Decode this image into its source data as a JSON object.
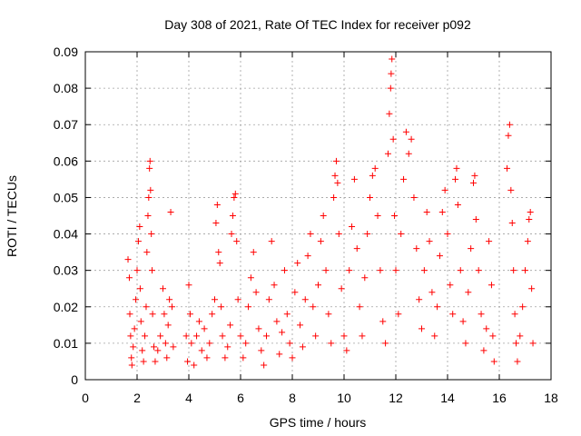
{
  "chart_data": {
    "type": "scatter",
    "title": "Day 308 of 2021, Rate Of TEC Index for receiver p092",
    "xlabel": "GPS time / hours",
    "ylabel": "ROTI / TECUs",
    "xlim": [
      0,
      18
    ],
    "ylim": [
      0,
      0.09
    ],
    "xticks": [
      0,
      2,
      4,
      6,
      8,
      10,
      12,
      14,
      16,
      18
    ],
    "yticks": [
      0,
      0.01,
      0.02,
      0.03,
      0.04,
      0.05,
      0.06,
      0.07,
      0.08,
      0.09
    ],
    "xtick_labels": [
      "0",
      "2",
      "4",
      "6",
      "8",
      "10",
      "12",
      "14",
      "16",
      "18"
    ],
    "ytick_labels": [
      "0",
      "0.01",
      "0.02",
      "0.03",
      "0.04",
      "0.05",
      "0.06",
      "0.07",
      "0.08",
      "0.09"
    ],
    "grid": true,
    "marker": "plus",
    "series_color": "#ff0000",
    "series": [
      {
        "name": "ROTI",
        "points": [
          [
            1.65,
            0.033
          ],
          [
            1.7,
            0.028
          ],
          [
            1.72,
            0.018
          ],
          [
            1.75,
            0.012
          ],
          [
            1.78,
            0.006
          ],
          [
            1.8,
            0.004
          ],
          [
            1.85,
            0.009
          ],
          [
            1.9,
            0.014
          ],
          [
            1.95,
            0.022
          ],
          [
            2.0,
            0.03
          ],
          [
            2.05,
            0.038
          ],
          [
            2.1,
            0.042
          ],
          [
            2.12,
            0.025
          ],
          [
            2.15,
            0.016
          ],
          [
            2.2,
            0.008
          ],
          [
            2.25,
            0.005
          ],
          [
            2.3,
            0.012
          ],
          [
            2.35,
            0.02
          ],
          [
            2.38,
            0.035
          ],
          [
            2.42,
            0.045
          ],
          [
            2.45,
            0.05
          ],
          [
            2.48,
            0.058
          ],
          [
            2.5,
            0.06
          ],
          [
            2.52,
            0.052
          ],
          [
            2.55,
            0.04
          ],
          [
            2.58,
            0.03
          ],
          [
            2.6,
            0.018
          ],
          [
            2.65,
            0.009
          ],
          [
            2.7,
            0.005
          ],
          [
            2.8,
            0.008
          ],
          [
            2.9,
            0.012
          ],
          [
            3.0,
            0.025
          ],
          [
            3.05,
            0.018
          ],
          [
            3.1,
            0.01
          ],
          [
            3.15,
            0.006
          ],
          [
            3.2,
            0.015
          ],
          [
            3.25,
            0.022
          ],
          [
            3.3,
            0.046
          ],
          [
            3.35,
            0.02
          ],
          [
            3.4,
            0.009
          ],
          [
            3.9,
            0.012
          ],
          [
            3.95,
            0.005
          ],
          [
            4.0,
            0.026
          ],
          [
            4.05,
            0.018
          ],
          [
            4.1,
            0.01
          ],
          [
            4.2,
            0.004
          ],
          [
            4.3,
            0.012
          ],
          [
            4.4,
            0.016
          ],
          [
            4.5,
            0.008
          ],
          [
            4.6,
            0.014
          ],
          [
            4.7,
            0.006
          ],
          [
            4.8,
            0.01
          ],
          [
            4.9,
            0.018
          ],
          [
            5.0,
            0.022
          ],
          [
            5.05,
            0.043
          ],
          [
            5.1,
            0.048
          ],
          [
            5.15,
            0.035
          ],
          [
            5.2,
            0.032
          ],
          [
            5.25,
            0.02
          ],
          [
            5.3,
            0.012
          ],
          [
            5.4,
            0.006
          ],
          [
            5.5,
            0.009
          ],
          [
            5.6,
            0.015
          ],
          [
            5.65,
            0.04
          ],
          [
            5.7,
            0.045
          ],
          [
            5.75,
            0.05
          ],
          [
            5.8,
            0.051
          ],
          [
            5.85,
            0.038
          ],
          [
            5.9,
            0.022
          ],
          [
            6.0,
            0.012
          ],
          [
            6.1,
            0.006
          ],
          [
            6.2,
            0.01
          ],
          [
            6.3,
            0.02
          ],
          [
            6.4,
            0.028
          ],
          [
            6.5,
            0.035
          ],
          [
            6.6,
            0.024
          ],
          [
            6.7,
            0.014
          ],
          [
            6.8,
            0.008
          ],
          [
            6.9,
            0.004
          ],
          [
            7.0,
            0.012
          ],
          [
            7.1,
            0.022
          ],
          [
            7.2,
            0.038
          ],
          [
            7.3,
            0.026
          ],
          [
            7.4,
            0.016
          ],
          [
            7.5,
            0.007
          ],
          [
            7.6,
            0.013
          ],
          [
            7.7,
            0.03
          ],
          [
            7.8,
            0.018
          ],
          [
            7.9,
            0.01
          ],
          [
            8.0,
            0.006
          ],
          [
            8.1,
            0.024
          ],
          [
            8.2,
            0.032
          ],
          [
            8.3,
            0.015
          ],
          [
            8.4,
            0.009
          ],
          [
            8.5,
            0.022
          ],
          [
            8.6,
            0.034
          ],
          [
            8.7,
            0.04
          ],
          [
            8.8,
            0.02
          ],
          [
            8.9,
            0.012
          ],
          [
            9.0,
            0.026
          ],
          [
            9.1,
            0.038
          ],
          [
            9.2,
            0.045
          ],
          [
            9.3,
            0.03
          ],
          [
            9.4,
            0.018
          ],
          [
            9.5,
            0.01
          ],
          [
            9.6,
            0.05
          ],
          [
            9.65,
            0.056
          ],
          [
            9.7,
            0.06
          ],
          [
            9.75,
            0.054
          ],
          [
            9.8,
            0.04
          ],
          [
            9.9,
            0.025
          ],
          [
            10.0,
            0.012
          ],
          [
            10.1,
            0.008
          ],
          [
            10.2,
            0.03
          ],
          [
            10.3,
            0.042
          ],
          [
            10.4,
            0.055
          ],
          [
            10.5,
            0.036
          ],
          [
            10.6,
            0.02
          ],
          [
            10.7,
            0.012
          ],
          [
            10.8,
            0.028
          ],
          [
            10.9,
            0.04
          ],
          [
            11.0,
            0.05
          ],
          [
            11.1,
            0.056
          ],
          [
            11.2,
            0.058
          ],
          [
            11.3,
            0.045
          ],
          [
            11.4,
            0.03
          ],
          [
            11.5,
            0.016
          ],
          [
            11.6,
            0.01
          ],
          [
            11.7,
            0.062
          ],
          [
            11.75,
            0.073
          ],
          [
            11.8,
            0.08
          ],
          [
            11.82,
            0.084
          ],
          [
            11.85,
            0.088
          ],
          [
            11.9,
            0.066
          ],
          [
            11.95,
            0.045
          ],
          [
            12.0,
            0.03
          ],
          [
            12.1,
            0.018
          ],
          [
            12.2,
            0.04
          ],
          [
            12.3,
            0.055
          ],
          [
            12.4,
            0.068
          ],
          [
            12.5,
            0.062
          ],
          [
            12.6,
            0.066
          ],
          [
            12.7,
            0.05
          ],
          [
            12.8,
            0.036
          ],
          [
            12.9,
            0.022
          ],
          [
            13.0,
            0.014
          ],
          [
            13.1,
            0.03
          ],
          [
            13.2,
            0.046
          ],
          [
            13.3,
            0.038
          ],
          [
            13.4,
            0.024
          ],
          [
            13.5,
            0.012
          ],
          [
            13.6,
            0.02
          ],
          [
            13.7,
            0.034
          ],
          [
            13.8,
            0.046
          ],
          [
            13.9,
            0.052
          ],
          [
            14.0,
            0.04
          ],
          [
            14.1,
            0.026
          ],
          [
            14.2,
            0.018
          ],
          [
            14.3,
            0.055
          ],
          [
            14.35,
            0.058
          ],
          [
            14.4,
            0.048
          ],
          [
            14.5,
            0.03
          ],
          [
            14.6,
            0.016
          ],
          [
            14.7,
            0.01
          ],
          [
            14.8,
            0.024
          ],
          [
            14.9,
            0.036
          ],
          [
            15.0,
            0.054
          ],
          [
            15.05,
            0.056
          ],
          [
            15.1,
            0.044
          ],
          [
            15.2,
            0.03
          ],
          [
            15.3,
            0.018
          ],
          [
            15.4,
            0.008
          ],
          [
            15.5,
            0.014
          ],
          [
            15.6,
            0.038
          ],
          [
            15.7,
            0.026
          ],
          [
            15.75,
            0.012
          ],
          [
            15.8,
            0.005
          ],
          [
            16.3,
            0.058
          ],
          [
            16.35,
            0.067
          ],
          [
            16.4,
            0.07
          ],
          [
            16.45,
            0.052
          ],
          [
            16.5,
            0.043
          ],
          [
            16.55,
            0.03
          ],
          [
            16.6,
            0.018
          ],
          [
            16.65,
            0.01
          ],
          [
            16.7,
            0.005
          ],
          [
            16.8,
            0.012
          ],
          [
            16.9,
            0.02
          ],
          [
            17.0,
            0.03
          ],
          [
            17.1,
            0.038
          ],
          [
            17.15,
            0.044
          ],
          [
            17.2,
            0.046
          ],
          [
            17.25,
            0.025
          ],
          [
            17.3,
            0.01
          ]
        ]
      }
    ]
  }
}
